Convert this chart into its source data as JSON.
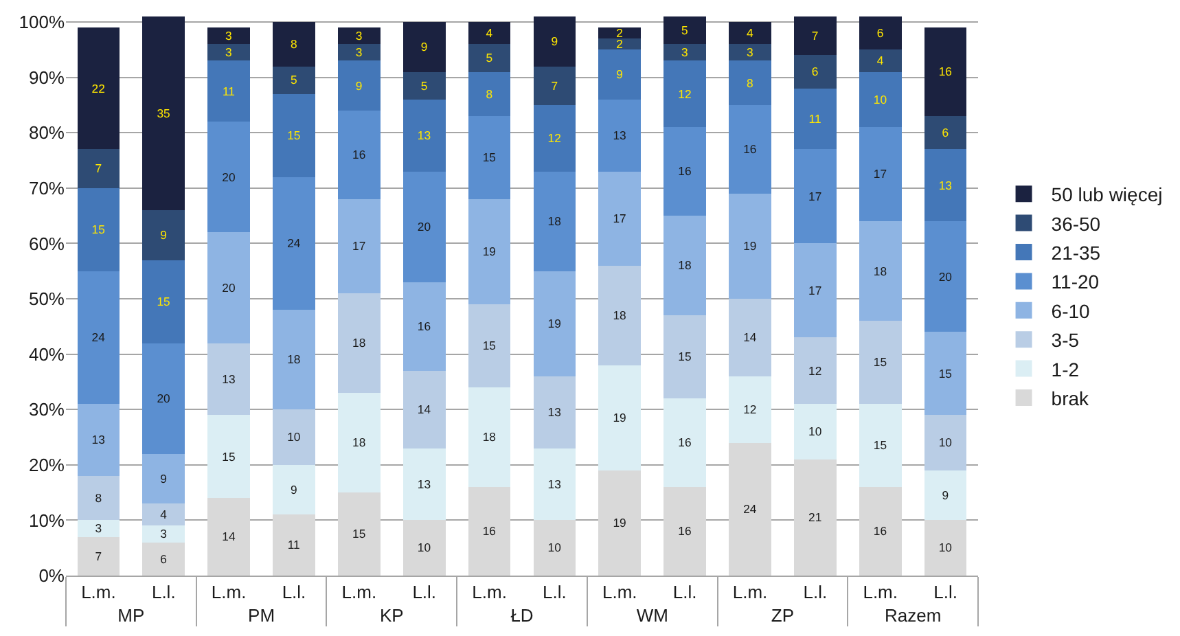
{
  "chart_data": {
    "type": "bar",
    "stacked": true,
    "data_labels": true,
    "legend": "right",
    "grid": "y",
    "categories": [
      "L.m.",
      "L.l.",
      "L.m.",
      "L.l.",
      "L.m.",
      "L.l.",
      "L.m.",
      "L.l.",
      "L.m.",
      "L.l.",
      "L.m.",
      "L.l.",
      "L.m.",
      "L.l."
    ],
    "annotations": [
      "MP",
      "PM",
      "KP",
      "ŁD",
      "WM",
      "ZP",
      "Razem"
    ],
    "ylim": [
      0,
      101
    ],
    "yticks": [
      {
        "value": 0,
        "label": "0%"
      },
      {
        "value": 10,
        "label": "10%"
      },
      {
        "value": 20,
        "label": "20%"
      },
      {
        "value": 30,
        "label": "30%"
      },
      {
        "value": 40,
        "label": "40%"
      },
      {
        "value": 50,
        "label": "50%"
      },
      {
        "value": 60,
        "label": "60%"
      },
      {
        "value": 70,
        "label": "70%"
      },
      {
        "value": 80,
        "label": "80%"
      },
      {
        "value": 90,
        "label": "90%"
      },
      {
        "value": 100,
        "label": "100%"
      }
    ],
    "series": [
      {
        "name": "brak",
        "color": "#d9d9d9",
        "values": [
          7,
          6,
          14,
          11,
          15,
          10,
          16,
          10,
          19,
          16,
          24,
          21,
          16,
          10
        ]
      },
      {
        "name": "1-2",
        "color": "#dbeef4",
        "values": [
          3,
          3,
          15,
          9,
          18,
          13,
          18,
          13,
          19,
          16,
          12,
          10,
          15,
          9
        ]
      },
      {
        "name": "3-5",
        "color": "#b9cde5",
        "values": [
          8,
          4,
          13,
          10,
          18,
          14,
          15,
          13,
          18,
          15,
          14,
          12,
          15,
          10
        ]
      },
      {
        "name": "6-10",
        "color": "#8eb4e3",
        "values": [
          13,
          9,
          20,
          18,
          17,
          16,
          19,
          19,
          17,
          18,
          19,
          17,
          18,
          15
        ]
      },
      {
        "name": "11-20",
        "color": "#5b8fd0",
        "values": [
          24,
          20,
          20,
          24,
          16,
          20,
          15,
          18,
          13,
          16,
          16,
          17,
          17,
          20
        ]
      },
      {
        "name": "21-35",
        "color": "#4477b8",
        "values": [
          15,
          15,
          11,
          15,
          9,
          13,
          8,
          12,
          9,
          12,
          8,
          11,
          10,
          13
        ]
      },
      {
        "name": "36-50",
        "color": "#2e4b74",
        "values": [
          7,
          9,
          3,
          5,
          3,
          5,
          5,
          7,
          2,
          3,
          3,
          6,
          4,
          6
        ]
      },
      {
        "name": "50 lub więcej",
        "color": "#1b2240",
        "values": [
          22,
          35,
          3,
          8,
          3,
          9,
          4,
          9,
          2,
          5,
          4,
          7,
          6,
          16
        ]
      }
    ]
  }
}
